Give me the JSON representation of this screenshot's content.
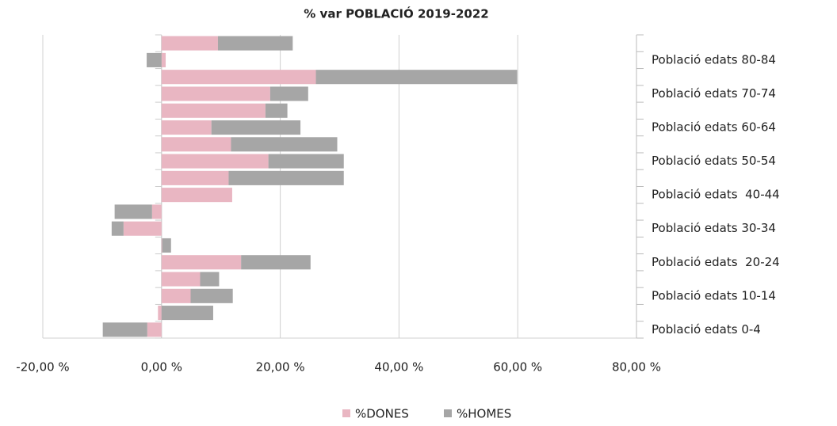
{
  "chart_data": {
    "type": "bar",
    "orientation": "horizontal",
    "stacked": true,
    "title": "% var POBLACIÓ 2019-2022",
    "categories": [
      "Població edats 0-4",
      null,
      "Població edats 10-14",
      null,
      "Població edats  20-24",
      null,
      "Població edats 30-34",
      null,
      "Població edats  40-44",
      null,
      "Població edats 50-54",
      null,
      "Població edats 60-64",
      null,
      "Població edats 70-74",
      null,
      "Població edats 80-84",
      null
    ],
    "series": [
      {
        "name": "%DONES",
        "color": "#e9b6c2",
        "values": [
          -2.4,
          -0.6,
          4.9,
          6.5,
          13.4,
          0.1,
          -6.4,
          -1.6,
          11.9,
          11.3,
          18.0,
          11.7,
          8.4,
          17.5,
          18.3,
          26.0,
          0.7,
          9.5
        ]
      },
      {
        "name": "%HOMES",
        "color": "#a6a6a6",
        "values": [
          -7.5,
          8.7,
          7.1,
          3.2,
          11.7,
          1.5,
          -2.0,
          -6.3,
          0,
          19.4,
          12.7,
          17.9,
          15.0,
          3.7,
          6.4,
          33.9,
          -2.5,
          12.6
        ]
      }
    ],
    "xlim": [
      -20,
      80
    ],
    "xticks": [
      {
        "value": -20,
        "label": "-20,00 %"
      },
      {
        "value": 0,
        "label": "0,00 %"
      },
      {
        "value": 20,
        "label": "20,00 %"
      },
      {
        "value": 40,
        "label": "40,00 %"
      },
      {
        "value": 60,
        "label": "60,00 %"
      },
      {
        "value": 80,
        "label": "80,00 %"
      }
    ],
    "grid": true,
    "legend": "bottom"
  }
}
